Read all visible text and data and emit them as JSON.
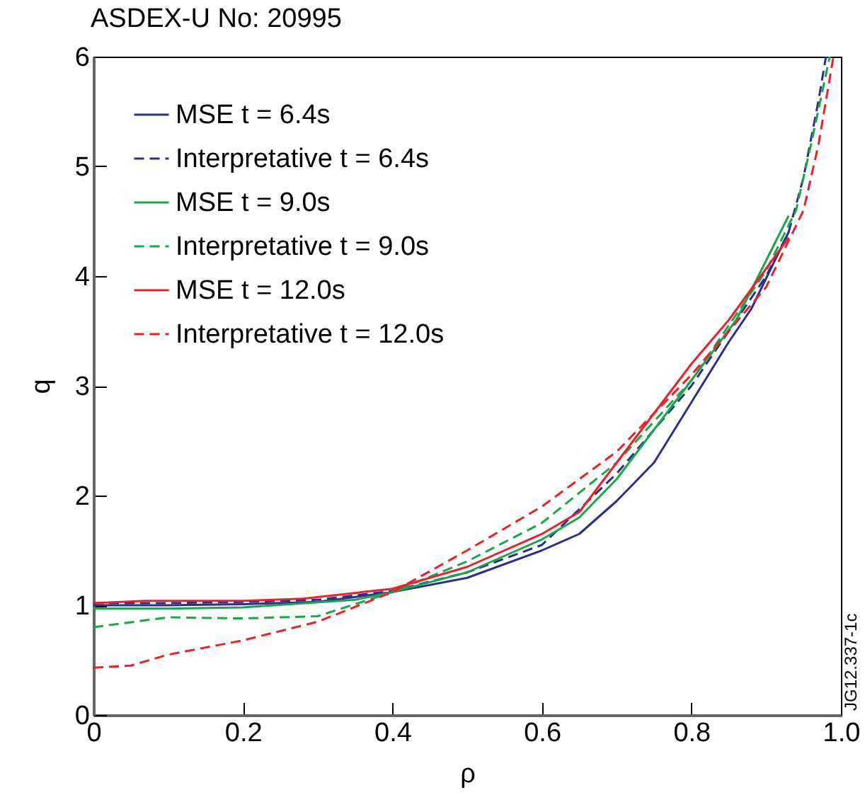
{
  "chart_data": {
    "type": "line",
    "title": "ASDEX-U No: 20995",
    "xlabel": "ρ",
    "ylabel": "q",
    "xlim": [
      0,
      1.0
    ],
    "xticks": [
      0,
      0.2,
      0.4,
      0.6,
      0.8,
      {
        "value": 1.0,
        "label": "1.0"
      }
    ],
    "ylim": [
      0,
      6
    ],
    "yticks": [
      0,
      1,
      2,
      3,
      4,
      5,
      6
    ],
    "grid": false,
    "legend": "top left",
    "annotations": [
      "JG12.337-1c"
    ],
    "series": [
      {
        "name": "MSE t = 6.4s",
        "color": "#2b2e8c",
        "line_style": "solid",
        "x": [
          0,
          0.1,
          0.2,
          0.3,
          0.4,
          0.5,
          0.6,
          0.65,
          0.7,
          0.75,
          0.8,
          0.85,
          0.88,
          0.93
        ],
        "values": [
          1.0,
          1.0,
          1.01,
          1.03,
          1.12,
          1.25,
          1.5,
          1.65,
          1.95,
          2.3,
          2.85,
          3.4,
          3.7,
          4.4
        ]
      },
      {
        "name": "Interpretative t = 6.4s",
        "color": "#2b2e8c",
        "line_style": "dashed",
        "x": [
          0,
          0.1,
          0.2,
          0.3,
          0.4,
          0.5,
          0.6,
          0.7,
          0.8,
          0.9,
          0.93,
          0.95,
          0.97,
          0.98
        ],
        "values": [
          1.02,
          1.02,
          1.03,
          1.05,
          1.13,
          1.3,
          1.55,
          2.2,
          3.0,
          4.0,
          4.4,
          4.9,
          5.6,
          6.0
        ]
      },
      {
        "name": "MSE t = 9.0s",
        "color": "#1aa64a",
        "line_style": "solid",
        "x": [
          0,
          0.1,
          0.2,
          0.35,
          0.4,
          0.5,
          0.6,
          0.65,
          0.7,
          0.8,
          0.86,
          0.93
        ],
        "values": [
          0.97,
          0.97,
          0.98,
          1.05,
          1.12,
          1.3,
          1.6,
          1.8,
          2.15,
          3.05,
          3.6,
          4.55
        ]
      },
      {
        "name": "Interpretative t = 9.0s",
        "color": "#1aa64a",
        "line_style": "dashed",
        "x": [
          0,
          0.1,
          0.2,
          0.3,
          0.4,
          0.5,
          0.6,
          0.7,
          0.8,
          0.9,
          0.94,
          0.96,
          0.985
        ],
        "values": [
          0.8,
          0.89,
          0.88,
          0.9,
          1.12,
          1.4,
          1.75,
          2.3,
          3.05,
          4.05,
          4.6,
          5.2,
          6.0
        ]
      },
      {
        "name": "MSE t = 12.0s",
        "color": "#e8212b",
        "line_style": "solid",
        "x": [
          0,
          0.07,
          0.2,
          0.28,
          0.4,
          0.5,
          0.6,
          0.65,
          0.7,
          0.8,
          0.85,
          0.93
        ],
        "values": [
          1.02,
          1.04,
          1.04,
          1.06,
          1.15,
          1.35,
          1.65,
          1.85,
          2.3,
          3.2,
          3.6,
          4.35
        ]
      },
      {
        "name": "Interpretative t = 12.0s",
        "color": "#e8212b",
        "line_style": "dashed",
        "x": [
          0,
          0.05,
          0.1,
          0.2,
          0.3,
          0.4,
          0.5,
          0.6,
          0.7,
          0.8,
          0.9,
          0.95,
          0.97,
          0.99
        ],
        "values": [
          0.43,
          0.45,
          0.55,
          0.68,
          0.85,
          1.12,
          1.5,
          1.9,
          2.4,
          3.1,
          3.9,
          4.6,
          5.2,
          6.0
        ]
      }
    ]
  }
}
